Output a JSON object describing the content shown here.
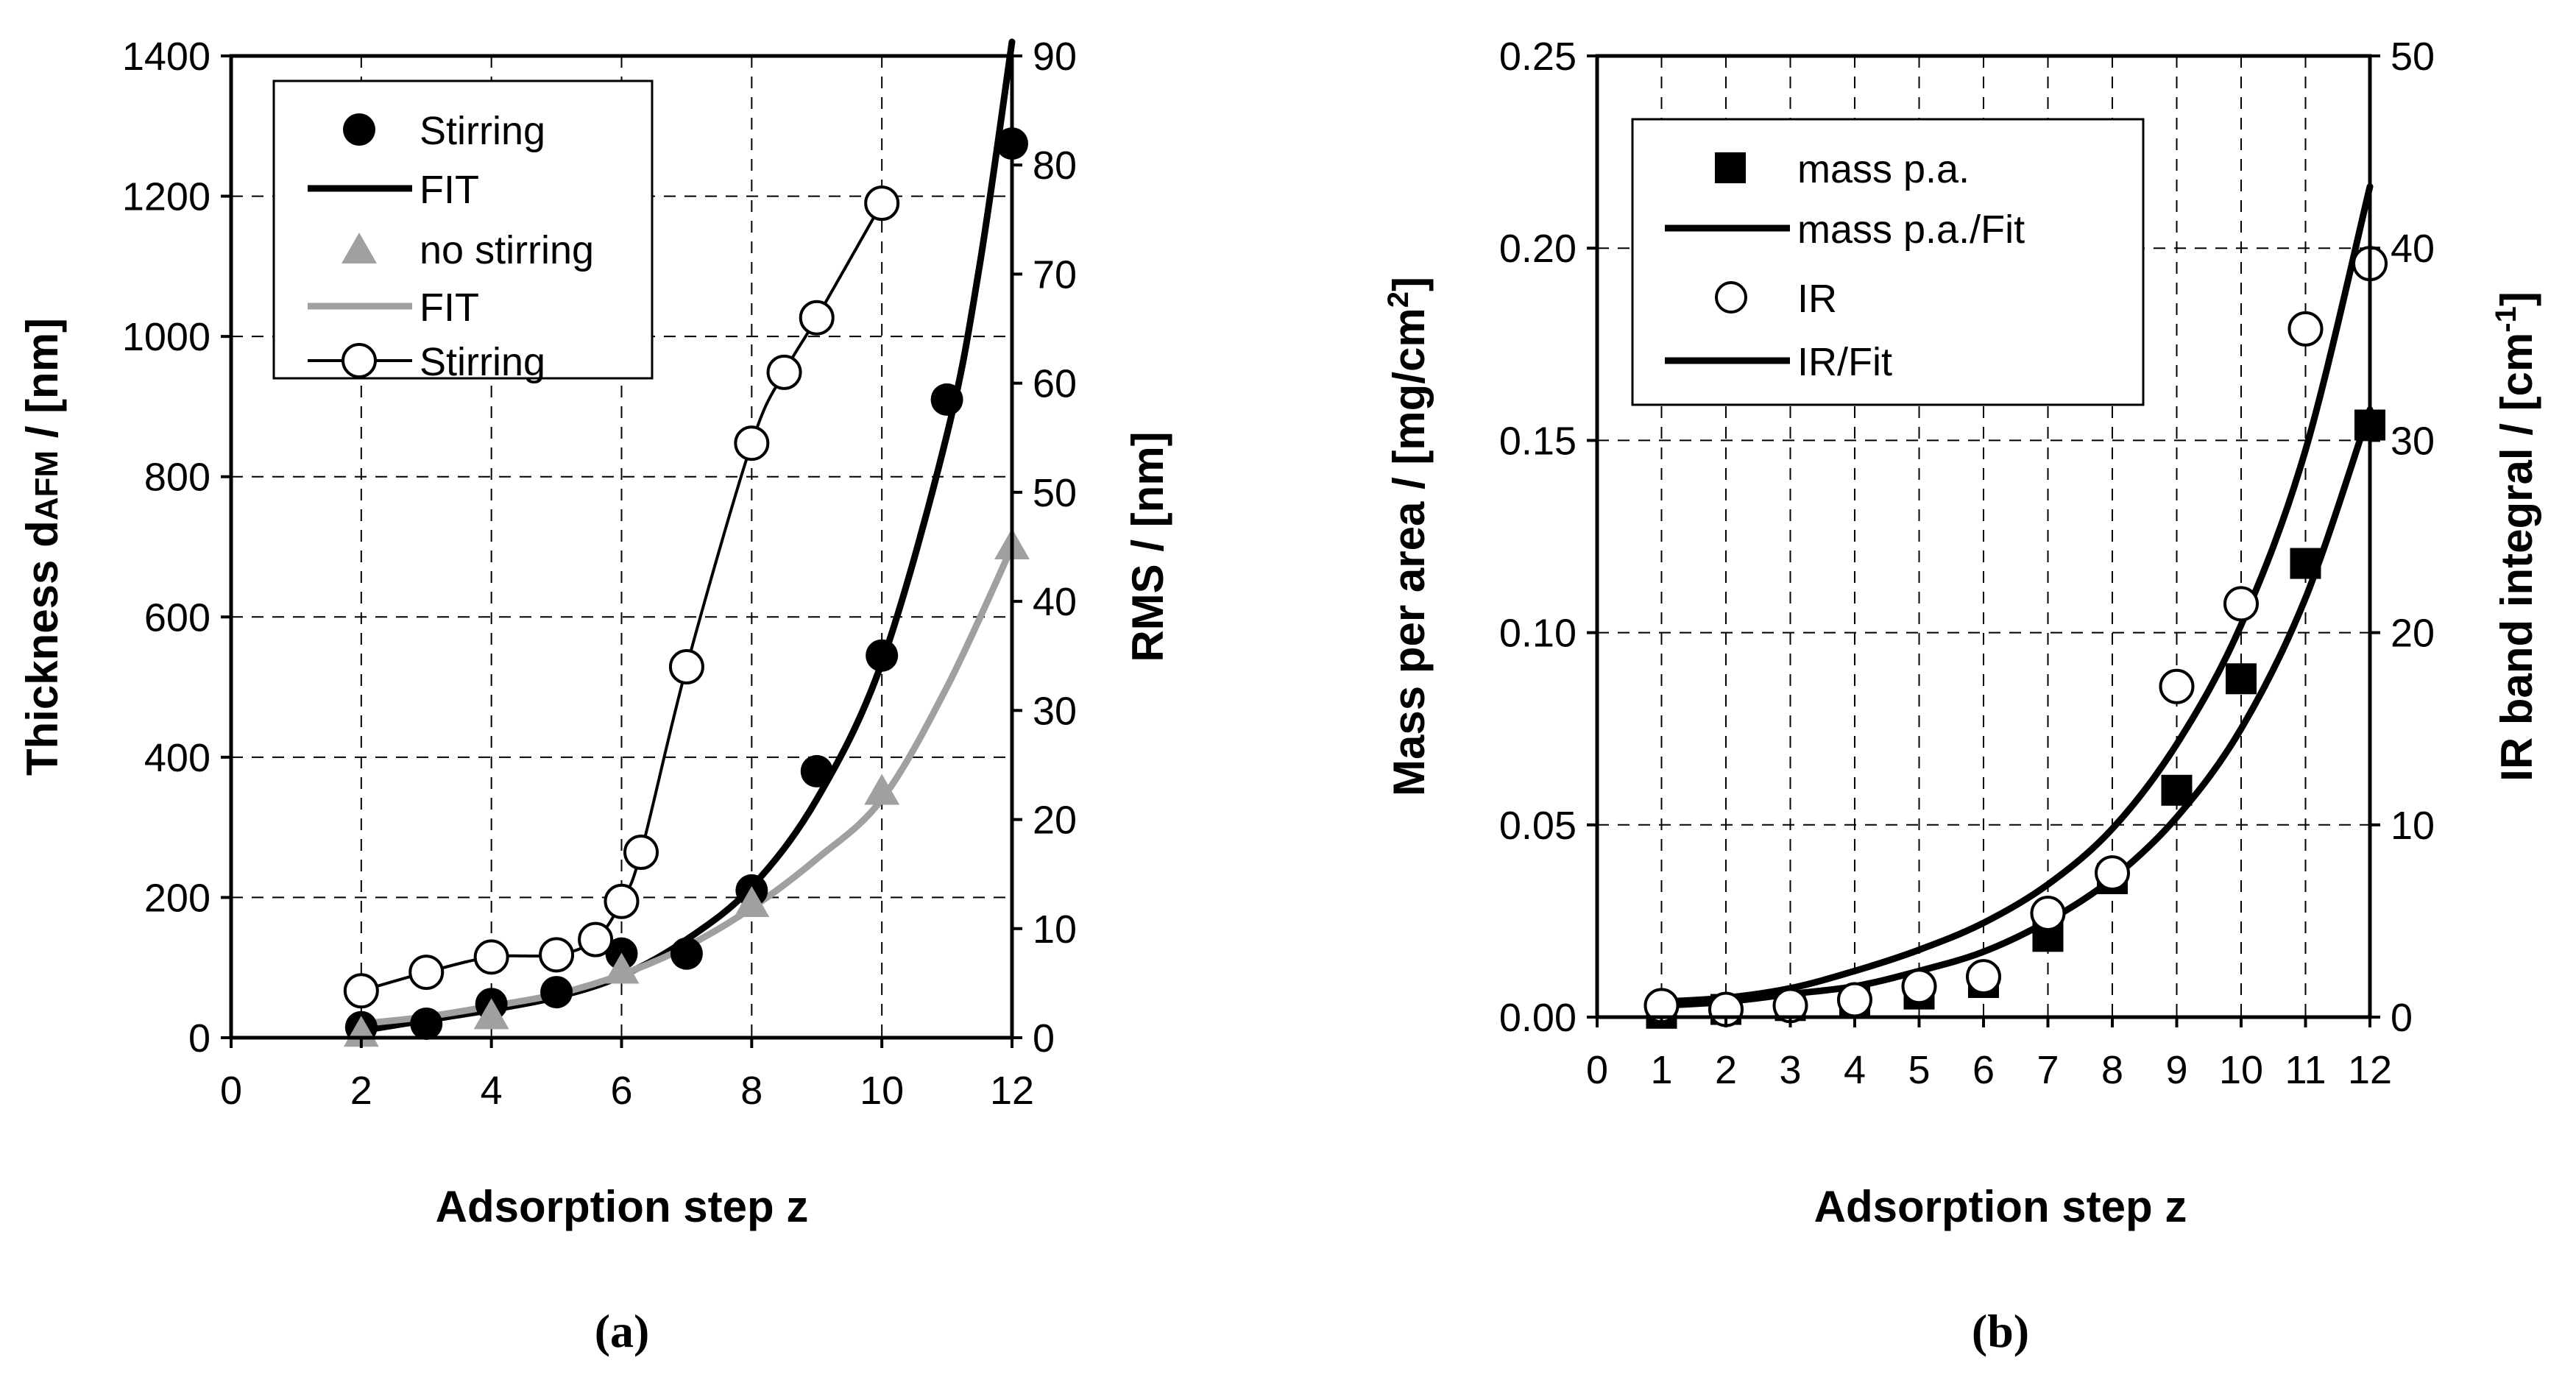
{
  "chart_data": [
    {
      "type": "line",
      "panel_label": "(a)",
      "xlabel": "Adsorption step z",
      "ylabel_left": "Thickness d",
      "ylabel_left_sub": "AFM",
      "ylabel_left_unit": " / [nm]",
      "ylabel_right": "RMS / [nm]",
      "xlim": [
        0,
        12
      ],
      "ylim_left": [
        0,
        1400
      ],
      "ylim_right": [
        0,
        90
      ],
      "x_ticks": [
        "0",
        "2",
        "4",
        "6",
        "8",
        "10",
        "12"
      ],
      "y_ticks_left": [
        "0",
        "200",
        "400",
        "600",
        "800",
        "1000",
        "1200",
        "1400"
      ],
      "y_ticks_right": [
        "0",
        "10",
        "20",
        "30",
        "40",
        "50",
        "60",
        "70",
        "80",
        "90"
      ],
      "grid": true,
      "legend_position": "top-left",
      "legend": [
        "Stirring",
        "FIT",
        "no stirring",
        "FIT",
        "Stirring"
      ],
      "series": [
        {
          "name": "Stirring",
          "axis": "left",
          "marker": "filled-circle",
          "color": "#000000",
          "x": [
            2,
            3,
            4,
            5,
            6,
            7,
            8,
            9,
            10,
            11,
            12
          ],
          "y": [
            15,
            20,
            48,
            65,
            120,
            120,
            210,
            380,
            545,
            910,
            1275
          ]
        },
        {
          "name": "FIT",
          "axis": "left",
          "line": "solid",
          "color": "#000000",
          "x": [
            2,
            3,
            4,
            5,
            6,
            7,
            8,
            9,
            10,
            11,
            11.5,
            12
          ],
          "y": [
            10,
            25,
            40,
            58,
            88,
            140,
            215,
            340,
            535,
            860,
            1100,
            1420
          ]
        },
        {
          "name": "no stirring",
          "axis": "left",
          "marker": "triangle",
          "color": "#a0a0a0",
          "x": [
            2,
            4,
            6,
            8,
            10,
            12
          ],
          "y": [
            5,
            30,
            95,
            190,
            350,
            700
          ]
        },
        {
          "name": "FIT",
          "axis": "left",
          "line": "solid",
          "color": "#a0a0a0",
          "x": [
            2,
            3,
            4,
            5,
            6,
            7,
            8,
            9,
            10,
            11,
            12
          ],
          "y": [
            20,
            30,
            45,
            62,
            90,
            130,
            185,
            255,
            340,
            500,
            700
          ]
        },
        {
          "name": "Stirring",
          "axis": "right",
          "marker": "open-circle",
          "line": "solid",
          "color": "#000000",
          "x": [
            2,
            3,
            4,
            5,
            5.6,
            6,
            6.3,
            7,
            8,
            8.5,
            9,
            10
          ],
          "y": [
            4.3,
            6,
            7.4,
            7.6,
            9,
            12.5,
            17,
            34,
            54.5,
            61,
            66,
            76.5
          ]
        }
      ]
    },
    {
      "type": "line",
      "panel_label": "(b)",
      "xlabel": "Adsorption step z",
      "ylabel_left": "Mass per area / [mg/cm",
      "ylabel_left_sup": "2",
      "ylabel_left_end": "]",
      "ylabel_right": "IR band integral / [cm",
      "ylabel_right_sup": "-1",
      "ylabel_right_end": "]",
      "xlim": [
        0,
        12
      ],
      "ylim_left": [
        0,
        0.25
      ],
      "ylim_right": [
        0,
        50
      ],
      "x_ticks": [
        "0",
        "1",
        "2",
        "3",
        "4",
        "5",
        "6",
        "7",
        "8",
        "9",
        "10",
        "11",
        "12"
      ],
      "y_ticks_left": [
        "0.00",
        "0.05",
        "0.10",
        "0.15",
        "0.20",
        "0.25"
      ],
      "y_ticks_right": [
        "0",
        "10",
        "20",
        "30",
        "40",
        "50"
      ],
      "grid": true,
      "legend_position": "top-left",
      "legend": [
        "mass p.a.",
        "mass p.a./Fit",
        "IR",
        "IR/Fit"
      ],
      "series": [
        {
          "name": "mass p.a.",
          "axis": "left",
          "marker": "filled-square",
          "color": "#000000",
          "x": [
            1,
            2,
            3,
            4,
            5,
            6,
            7,
            8,
            9,
            10,
            11,
            12
          ],
          "y": [
            0.001,
            0.002,
            0.003,
            0.004,
            0.006,
            0.009,
            0.021,
            0.036,
            0.059,
            0.088,
            0.118,
            0.154
          ]
        },
        {
          "name": "mass p.a./Fit",
          "axis": "left",
          "line": "solid",
          "color": "#000000",
          "x": [
            1,
            2,
            3,
            4,
            5,
            6,
            7,
            8,
            9,
            10,
            11,
            12
          ],
          "y": [
            0.003,
            0.004,
            0.006,
            0.008,
            0.012,
            0.017,
            0.025,
            0.036,
            0.052,
            0.075,
            0.109,
            0.158
          ]
        },
        {
          "name": "IR",
          "axis": "right",
          "marker": "open-circle",
          "color": "#000000",
          "x": [
            1,
            2,
            3,
            4,
            5,
            6,
            7,
            8,
            9,
            10,
            11,
            12
          ],
          "y": [
            0.6,
            0.4,
            0.6,
            0.9,
            1.6,
            2.1,
            5.4,
            7.5,
            17.2,
            21.5,
            35.8,
            39.2
          ]
        },
        {
          "name": "IR/Fit",
          "axis": "right",
          "line": "solid",
          "color": "#000000",
          "x": [
            1,
            2,
            3,
            4,
            5,
            6,
            7,
            8,
            9,
            10,
            11,
            12
          ],
          "y": [
            0.8,
            1.0,
            1.5,
            2.4,
            3.5,
            4.9,
            6.9,
            9.8,
            14.2,
            20.4,
            29.5,
            43.2
          ]
        }
      ]
    }
  ]
}
